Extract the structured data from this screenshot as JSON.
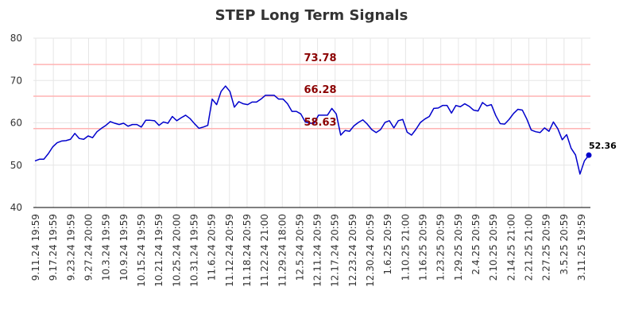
{
  "chart_data": {
    "type": "line",
    "title": "STEP Long Term Signals",
    "xlabel": "",
    "ylabel": "",
    "ylim": [
      40,
      80
    ],
    "yticks": [
      40,
      50,
      60,
      70,
      80
    ],
    "grid": true,
    "x_tick_labels": [
      "9.11.24 19:59",
      "9.17.24 19:59",
      "9.23.24 19:59",
      "9.27.24 20:00",
      "10.3.24 19:59",
      "10.9.24 19:59",
      "10.15.24 19:59",
      "10.21.24 19:59",
      "10.25.24 20:00",
      "10.31.24 19:59",
      "11.6.24 20:59",
      "11.12.24 20:59",
      "11.18.24 20:59",
      "11.22.24 21:00",
      "11.29.24 18:00",
      "12.5.24 20:59",
      "12.11.24 20:59",
      "12.17.24 20:59",
      "12.23.24 20:59",
      "12.30.24 20:59",
      "1.6.25 20:59",
      "1.10.25 21:00",
      "1.16.25 20:59",
      "1.23.25 20:59",
      "1.29.25 20:59",
      "2.4.25 20:59",
      "2.10.25 20:59",
      "2.14.25 21:00",
      "2.21.25 21:00",
      "2.27.25 20:59",
      "3.5.25 20:59",
      "3.11.25 19:59"
    ],
    "reference_lines": [
      {
        "value": 73.78,
        "label": "73.78",
        "color": "#ffb3b3"
      },
      {
        "value": 66.28,
        "label": "66.28",
        "color": "#ffb3b3"
      },
      {
        "value": 58.63,
        "label": "58.63",
        "color": "#ffb3b3"
      }
    ],
    "reference_label_color": "#8b0000",
    "series": [
      {
        "color": "#0000cc",
        "values": [
          51.0,
          51.4,
          51.4,
          52.7,
          54.3,
          55.3,
          55.7,
          55.8,
          56.1,
          57.5,
          56.3,
          56.1,
          56.9,
          56.5,
          57.9,
          58.7,
          59.4,
          60.3,
          59.9,
          59.6,
          59.9,
          59.2,
          59.6,
          59.6,
          59.0,
          60.6,
          60.6,
          60.5,
          59.4,
          60.2,
          59.9,
          61.5,
          60.5,
          61.2,
          61.8,
          61.0,
          59.8,
          58.7,
          59.0,
          59.4,
          65.6,
          64.3,
          67.4,
          68.7,
          67.4,
          63.7,
          65.0,
          64.5,
          64.3,
          64.9,
          64.9,
          65.6,
          66.5,
          66.5,
          66.5,
          65.6,
          65.6,
          64.5,
          62.7,
          62.7,
          62.1,
          60.2,
          59.9,
          59.9,
          61.8,
          61.8,
          61.8,
          63.4,
          62.1,
          57.1,
          58.2,
          58.0,
          59.3,
          60.1,
          60.7,
          59.7,
          58.4,
          57.7,
          58.4,
          60.1,
          60.5,
          58.8,
          60.5,
          60.8,
          57.8,
          57.1,
          58.5,
          60.1,
          60.9,
          61.5,
          63.4,
          63.5,
          64.1,
          64.1,
          62.3,
          64.1,
          63.8,
          64.5,
          63.9,
          63.0,
          62.8,
          64.8,
          64.0,
          64.3,
          61.7,
          59.8,
          59.7,
          60.8,
          62.2,
          63.2,
          63.0,
          60.9,
          58.3,
          57.9,
          57.7,
          58.8,
          58.0,
          60.2,
          58.6,
          56.0,
          57.2,
          54.0,
          52.4,
          47.9,
          51.0,
          52.36
        ]
      }
    ],
    "last_point_label": "52.36"
  }
}
